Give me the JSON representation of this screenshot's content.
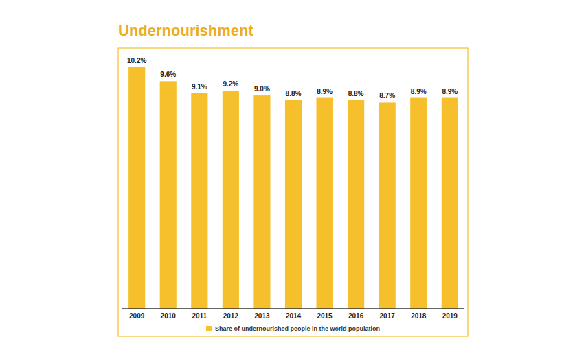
{
  "chart_data": {
    "type": "bar",
    "title": "Undernourishment",
    "categories": [
      "2009",
      "2010",
      "2011",
      "2012",
      "2013",
      "2014",
      "2015",
      "2016",
      "2017",
      "2018",
      "2019"
    ],
    "series": [
      {
        "name": "Share of undernourished people in the world population",
        "color": "#f5c02c",
        "values": [
          10.2,
          9.6,
          9.1,
          9.2,
          9.0,
          8.8,
          8.9,
          8.8,
          8.7,
          8.9,
          8.9
        ],
        "value_labels": [
          "10.2%",
          "9.6%",
          "9.1%",
          "9.2%",
          "9.0%",
          "8.8%",
          "8.9%",
          "8.8%",
          "8.7%",
          "8.9%",
          "8.9%"
        ]
      }
    ],
    "ylim": [
      0,
      11
    ],
    "tick_labels": "x",
    "data_labels": true,
    "legend": "bottom",
    "grid": false
  }
}
